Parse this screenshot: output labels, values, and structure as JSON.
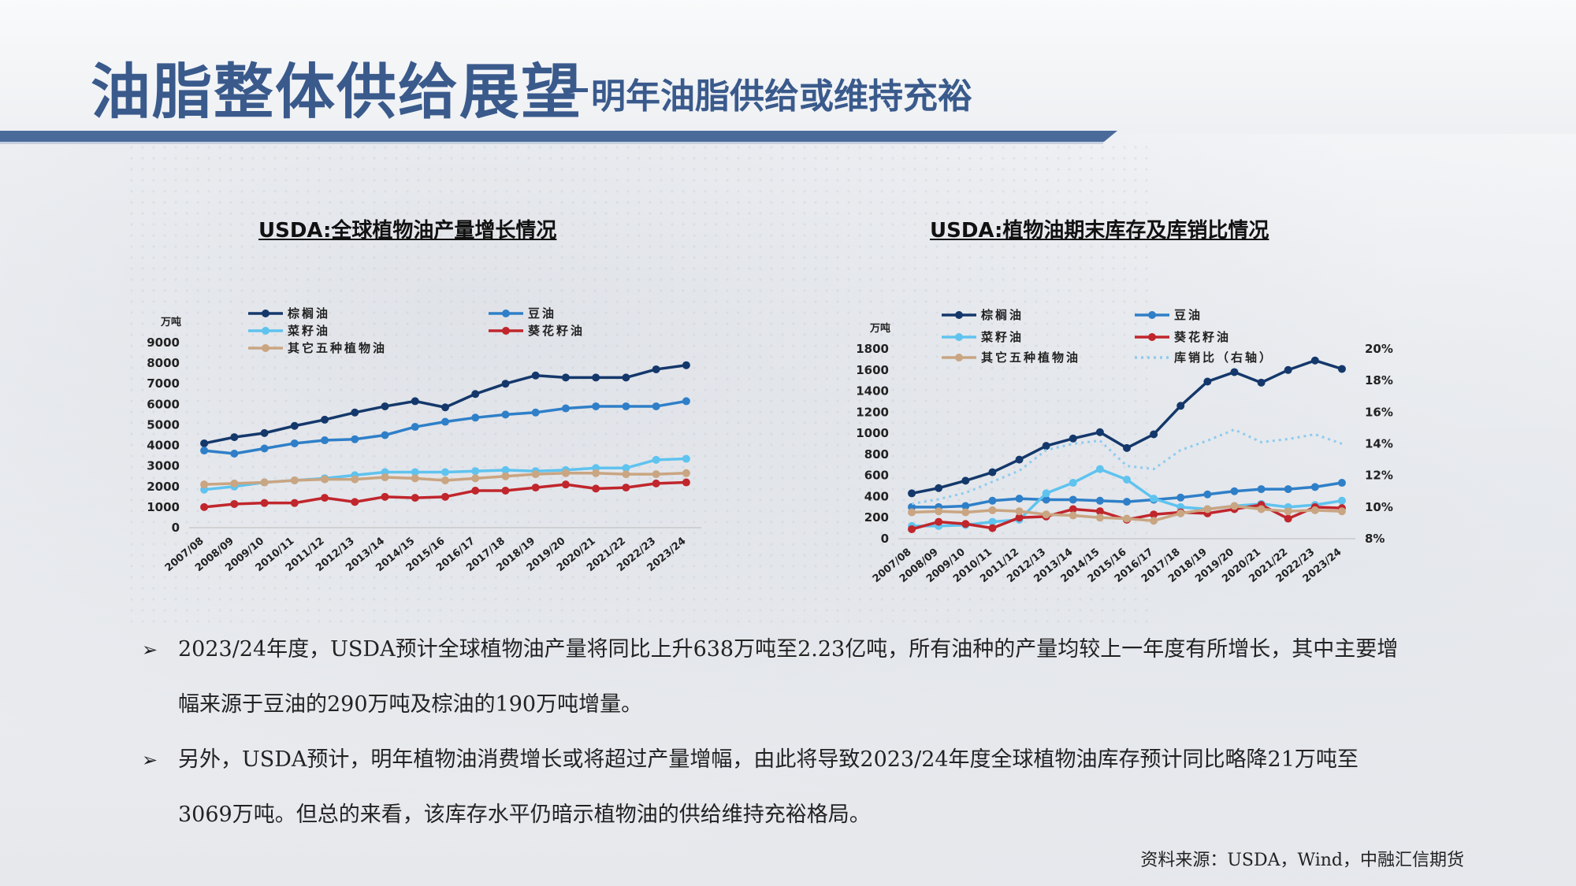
{
  "page": {
    "title_main": "油脂整体供给展望",
    "title_sub": "明年油脂供给或维持充裕",
    "bullets": [
      "2023/24年度，USDA预计全球植物油产量将同比上升638万吨至2.23亿吨，所有油种的产量均较上一年度有所增长，其中主要增幅来源于豆油的290万吨及棕油的190万吨增量。",
      "另外，USDA预计，明年植物油消费增长或将超过产量增幅，由此将导致2023/24年度全球植物油库存预计同比略降21万吨至3069万吨。但总的来看，该库存水平仍暗示植物油的供给维持充裕格局。"
    ],
    "bullet_marker": "➢",
    "source": "资料来源：USDA，Wind，中融汇信期货"
  },
  "chart_data": [
    {
      "type": "line",
      "title": "USDA:全球植物油产量增长情况",
      "ylabel": "万吨",
      "ylim": [
        0,
        9000
      ],
      "yticks": [
        0,
        1000,
        2000,
        3000,
        4000,
        5000,
        6000,
        7000,
        8000,
        9000
      ],
      "legend_position": "top",
      "categories": [
        "2007/08",
        "2008/09",
        "2009/10",
        "2010/11",
        "2011/12",
        "2012/13",
        "2013/14",
        "2014/15",
        "2015/16",
        "2016/17",
        "2017/18",
        "2018/19",
        "2019/20",
        "2020/21",
        "2021/22",
        "2022/23",
        "2023/24"
      ],
      "series": [
        {
          "name": "棕榈油",
          "color": "#14386b",
          "values": [
            4100,
            4400,
            4600,
            4950,
            5250,
            5600,
            5900,
            6150,
            5850,
            6500,
            7000,
            7400,
            7300,
            7300,
            7300,
            7700,
            7900
          ]
        },
        {
          "name": "豆油",
          "color": "#2f7fc8",
          "values": [
            3750,
            3600,
            3850,
            4100,
            4250,
            4300,
            4500,
            4900,
            5150,
            5350,
            5500,
            5600,
            5800,
            5900,
            5900,
            5900,
            6150
          ]
        },
        {
          "name": "菜籽油",
          "color": "#5fc3ef",
          "values": [
            1850,
            2000,
            2200,
            2300,
            2400,
            2550,
            2700,
            2700,
            2700,
            2750,
            2800,
            2750,
            2800,
            2900,
            2900,
            3300,
            3350
          ]
        },
        {
          "name": "葵花籽油",
          "color": "#c0262c",
          "values": [
            1000,
            1150,
            1200,
            1200,
            1450,
            1250,
            1500,
            1450,
            1500,
            1800,
            1800,
            1950,
            2100,
            1900,
            1950,
            2150,
            2200
          ]
        },
        {
          "name": "其它五种植物油",
          "color": "#c9a582",
          "values": [
            2100,
            2150,
            2200,
            2300,
            2350,
            2350,
            2450,
            2400,
            2300,
            2400,
            2500,
            2600,
            2650,
            2650,
            2600,
            2600,
            2650
          ]
        }
      ]
    },
    {
      "type": "line",
      "title": "USDA:植物油期末库存及库销比情况",
      "ylabel": "万吨",
      "ylim": [
        0,
        1800
      ],
      "yticks": [
        0,
        200,
        400,
        600,
        800,
        1000,
        1200,
        1400,
        1600,
        1800
      ],
      "y2lim": [
        8,
        20
      ],
      "y2ticks": [
        8,
        10,
        12,
        14,
        16,
        18,
        20
      ],
      "y2_unit": "%",
      "legend_position": "top",
      "categories": [
        "2007/08",
        "2008/09",
        "2009/10",
        "2010/11",
        "2011/12",
        "2012/13",
        "2013/14",
        "2014/15",
        "2015/16",
        "2016/17",
        "2017/18",
        "2018/19",
        "2019/20",
        "2020/21",
        "2021/22",
        "2022/23",
        "2023/24"
      ],
      "series": [
        {
          "name": "棕榈油",
          "color": "#14386b",
          "axis": "left",
          "values": [
            430,
            480,
            550,
            630,
            750,
            880,
            950,
            1010,
            860,
            990,
            1260,
            1490,
            1580,
            1480,
            1600,
            1690,
            1610
          ]
        },
        {
          "name": "豆油",
          "color": "#2f7fc8",
          "axis": "left",
          "values": [
            300,
            300,
            310,
            360,
            380,
            370,
            370,
            360,
            350,
            370,
            390,
            420,
            450,
            470,
            470,
            490,
            530
          ]
        },
        {
          "name": "菜籽油",
          "color": "#5fc3ef",
          "axis": "left",
          "values": [
            120,
            120,
            130,
            160,
            180,
            430,
            530,
            660,
            560,
            380,
            300,
            280,
            310,
            330,
            300,
            320,
            360
          ]
        },
        {
          "name": "葵花籽油",
          "color": "#c0262c",
          "axis": "left",
          "values": [
            90,
            160,
            140,
            100,
            200,
            210,
            280,
            260,
            180,
            230,
            250,
            240,
            280,
            320,
            190,
            300,
            290
          ]
        },
        {
          "name": "其它五种植物油",
          "color": "#c9a582",
          "axis": "left",
          "values": [
            250,
            260,
            250,
            270,
            260,
            230,
            220,
            200,
            190,
            170,
            240,
            280,
            310,
            280,
            260,
            270,
            260
          ]
        },
        {
          "name": "库销比（右轴）",
          "color": "#8ecbf0",
          "axis": "right",
          "dashed": true,
          "values": [
            10.2,
            10.5,
            10.9,
            11.6,
            12.3,
            13.6,
            14.0,
            14.2,
            12.6,
            12.4,
            13.6,
            14.2,
            14.9,
            14.1,
            14.3,
            14.6,
            14.0
          ]
        }
      ]
    }
  ]
}
